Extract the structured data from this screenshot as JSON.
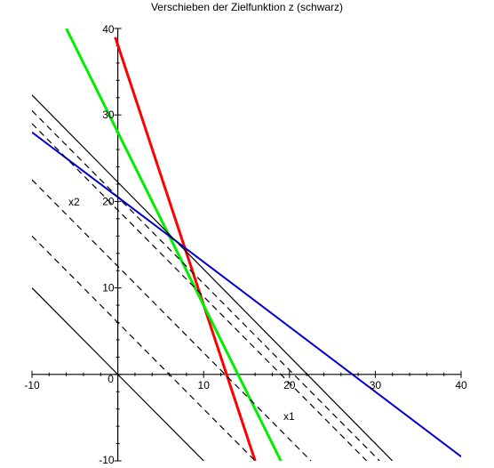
{
  "chart_data": {
    "type": "line",
    "title": "Verschieben der Zielfunktion z (schwarz)",
    "xlabel": "x1",
    "ylabel": "x2",
    "xlim": [
      -10,
      40
    ],
    "ylim": [
      -10,
      40
    ],
    "x_ticks": [
      -10,
      0,
      10,
      20,
      30,
      40
    ],
    "y_ticks": [
      -10,
      0,
      10,
      20,
      30,
      40
    ],
    "x_tick_labels": [
      "-10",
      "0",
      "10",
      "20",
      "30",
      "40"
    ],
    "y_tick_labels": [
      "-10",
      "",
      "10",
      "20",
      "30",
      "40"
    ],
    "origin_label": "0",
    "grid": false,
    "series": [
      {
        "color": "#ff0000",
        "style": "solid",
        "width": 3,
        "x": [
          -0.3,
          16
        ],
        "y": [
          39,
          -10
        ]
      },
      {
        "color": "#00ee00",
        "style": "solid",
        "width": 3,
        "x": [
          -6,
          19
        ],
        "y": [
          40,
          -10
        ]
      },
      {
        "color": "#0000cc",
        "style": "solid",
        "width": 2,
        "x": [
          -10,
          40
        ],
        "y": [
          28,
          -9.5
        ]
      },
      {
        "color": "#000000",
        "style": "solid",
        "width": 1.2,
        "x": [
          -10,
          32
        ],
        "y": [
          32.3,
          -10
        ]
      },
      {
        "color": "#000000",
        "style": "dashed",
        "width": 1.2,
        "x": [
          -10,
          30.5
        ],
        "y": [
          30.5,
          -10
        ]
      },
      {
        "color": "#000000",
        "style": "dashed",
        "width": 1.2,
        "x": [
          -10,
          29
        ],
        "y": [
          29,
          -10
        ]
      },
      {
        "color": "#000000",
        "style": "dashed",
        "width": 1.2,
        "x": [
          -10,
          22.5
        ],
        "y": [
          22.5,
          -10
        ]
      },
      {
        "color": "#000000",
        "style": "dashed",
        "width": 1.2,
        "x": [
          -10,
          16
        ],
        "y": [
          16,
          -10
        ]
      },
      {
        "color": "#000000",
        "style": "solid",
        "width": 1.2,
        "x": [
          -10,
          10
        ],
        "y": [
          10,
          -10
        ]
      }
    ]
  }
}
